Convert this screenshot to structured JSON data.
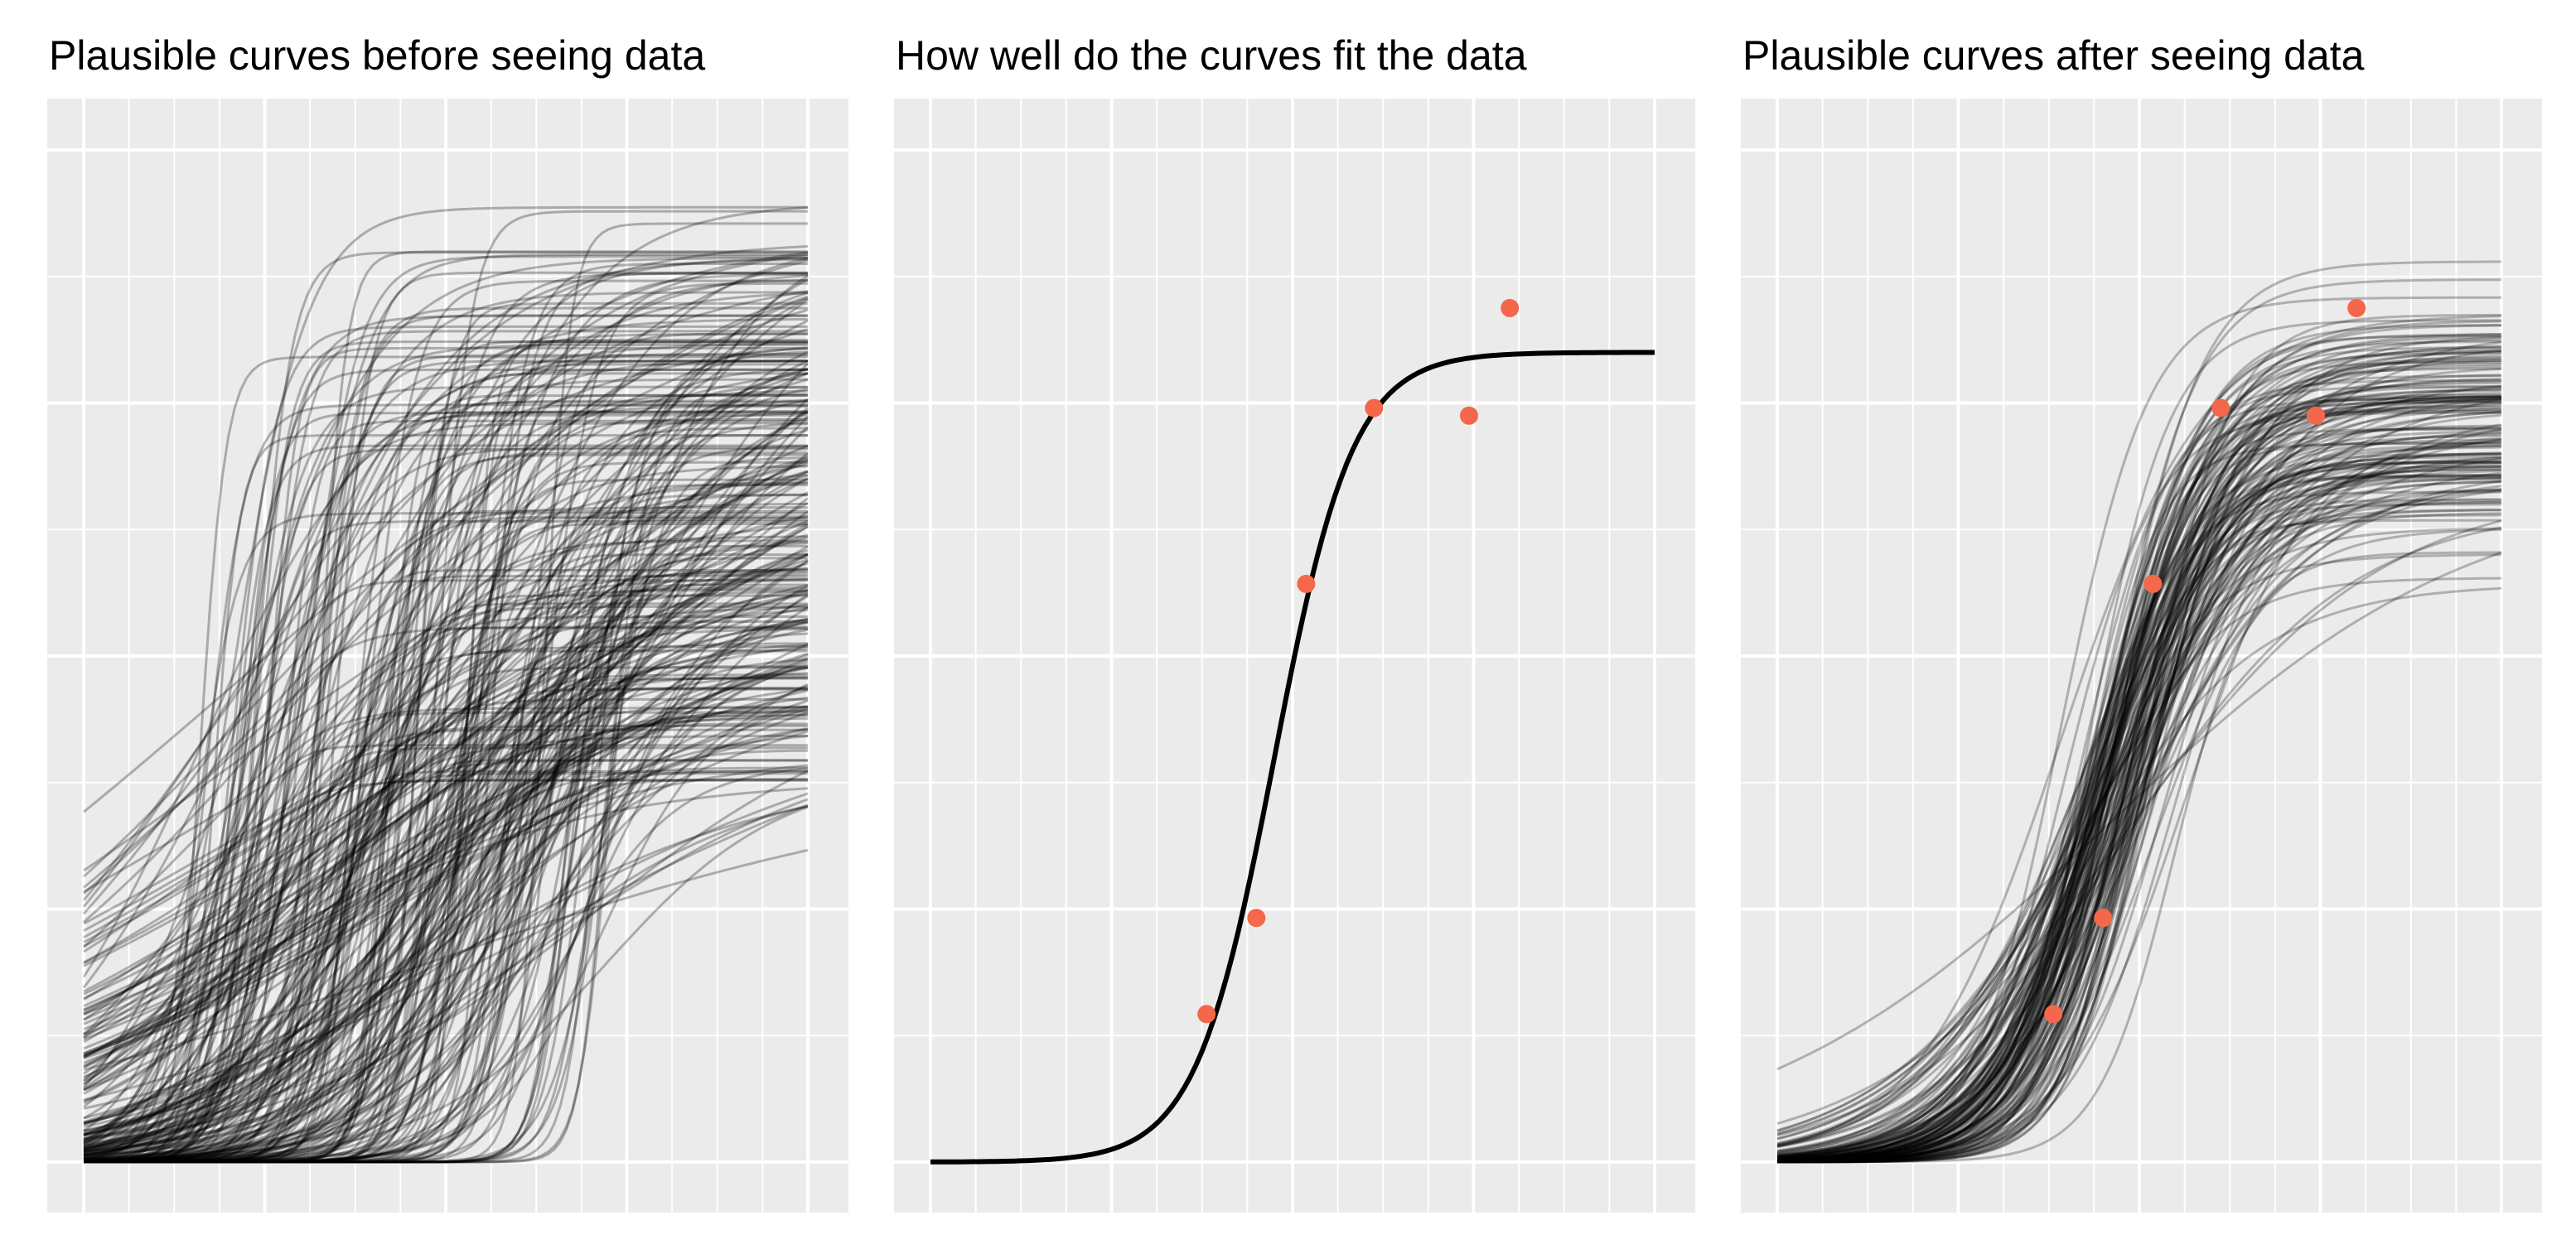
{
  "chart_data": [
    {
      "type": "line",
      "title": "Plausible curves before seeing data",
      "xlabel": "",
      "ylabel": "",
      "xlim": [
        0,
        8
      ],
      "ylim": [
        0,
        8
      ],
      "grid": true,
      "tick_labels_shown": false,
      "series_description_count": 300,
      "curve_family": "logistic",
      "series_color": "#000000",
      "series_opacity": 0.28
    },
    {
      "type": "line",
      "title": "How well do the curves fit the data",
      "xlabel": "",
      "ylabel": "",
      "xlim": [
        0,
        8
      ],
      "ylim": [
        0,
        8
      ],
      "grid": true,
      "tick_labels_shown": false,
      "fitted_curve": {
        "L": 6.4,
        "k": 2.3,
        "x0": 3.8,
        "color": "#000000"
      },
      "points": {
        "color": "#F4674A",
        "x": [
          3.05,
          3.6,
          4.15,
          4.9,
          5.95,
          6.4
        ],
        "y": [
          1.17,
          1.93,
          4.57,
          5.96,
          5.9,
          6.75
        ]
      }
    },
    {
      "type": "line",
      "title": "Plausible curves after seeing data",
      "xlabel": "",
      "ylabel": "",
      "xlim": [
        0,
        8
      ],
      "ylim": [
        0,
        8
      ],
      "grid": true,
      "tick_labels_shown": false,
      "series_description_count": 150,
      "curve_family": "logistic",
      "series_color": "#000000",
      "series_opacity": 0.26,
      "points": {
        "color": "#F4674A",
        "x": [
          3.05,
          3.6,
          4.15,
          4.9,
          5.95,
          6.4
        ],
        "y": [
          1.17,
          1.93,
          4.57,
          5.96,
          5.9,
          6.75
        ]
      }
    }
  ]
}
